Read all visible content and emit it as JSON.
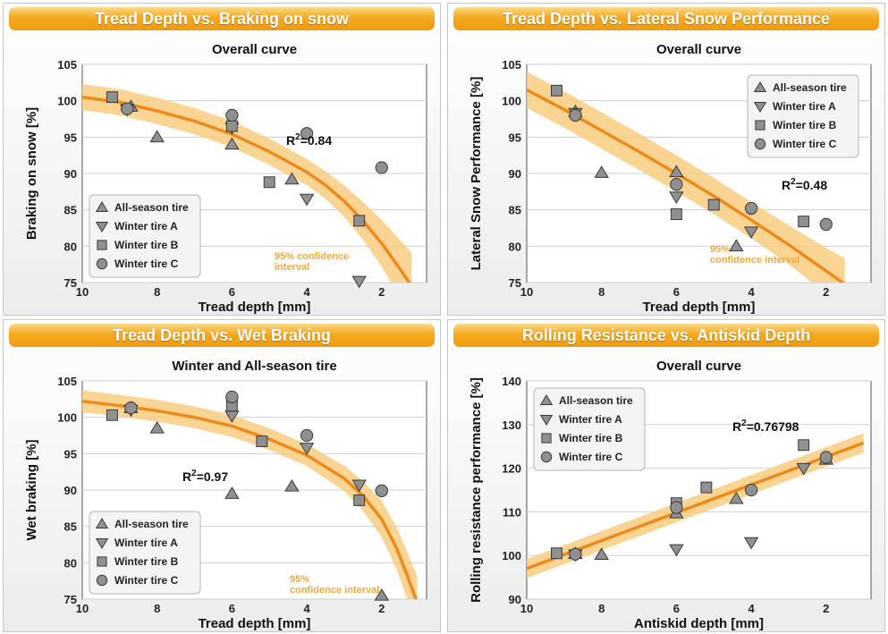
{
  "colors": {
    "banner": "#f4a91f",
    "band": "#f9cc80",
    "curve": "#ee8a1c",
    "ci_text": "#f2a93b",
    "marker_fill": "#909090",
    "marker_stroke": "#3a3a3a"
  },
  "legend_items": [
    {
      "label": "All-season tire",
      "marker": "triangle-up"
    },
    {
      "label": "Winter tire A",
      "marker": "triangle-down"
    },
    {
      "label": "Winter tire B",
      "marker": "square"
    },
    {
      "label": "Winter tire C",
      "marker": "circle"
    }
  ],
  "panels": [
    {
      "banner": "Tread Depth vs. Braking on snow",
      "r2_label": "R",
      "r2_sup": "2",
      "r2_value": "=0.84",
      "ci_line1": "95%  confidence",
      "ci_line2": "interval"
    },
    {
      "banner": "Tread Depth vs. Lateral Snow Performance",
      "r2_label": "R",
      "r2_sup": "2",
      "r2_value": "=0.48",
      "ci_line1": "95%",
      "ci_line2": "confidence interval"
    },
    {
      "banner": "Tread Depth vs. Wet Braking",
      "r2_label": "R",
      "r2_sup": "2",
      "r2_value": "=0.97",
      "ci_line1": "95%",
      "ci_line2": "confidence interval"
    },
    {
      "banner": "Rolling Resistance vs. Antiskid Depth",
      "r2_label": "R",
      "r2_sup": "2",
      "r2_value": "=0.76798",
      "ci_line1": "",
      "ci_line2": ""
    }
  ],
  "chart_data": [
    {
      "type": "scatter",
      "title": "Overall curve",
      "xlabel": "Tread depth [mm]",
      "ylabel": "Braking on snow [%]",
      "xlim": [
        10,
        0.8
      ],
      "x_reversed": true,
      "ylim": [
        75,
        105
      ],
      "xticks": [
        10,
        8,
        6,
        4,
        2
      ],
      "yticks": [
        75,
        80,
        85,
        90,
        95,
        100,
        105
      ],
      "legend_position": "bottom-left",
      "grid": true,
      "series": [
        {
          "name": "All-season tire",
          "marker": "triangle-up",
          "points": [
            [
              8.7,
              99.2
            ],
            [
              8,
              95
            ],
            [
              6,
              94
            ],
            [
              4.4,
              89.2
            ]
          ]
        },
        {
          "name": "Winter tire A",
          "marker": "triangle-down",
          "points": [
            [
              8.8,
              98.8
            ],
            [
              6,
              96.3
            ],
            [
              4,
              86.5
            ],
            [
              2.6,
              75.2
            ]
          ]
        },
        {
          "name": "Winter tire B",
          "marker": "square",
          "points": [
            [
              9.2,
              100.5
            ],
            [
              6,
              96.5
            ],
            [
              5,
              88.8
            ],
            [
              2.6,
              83.5
            ]
          ]
        },
        {
          "name": "Winter tire C",
          "marker": "circle",
          "points": [
            [
              8.8,
              98.9
            ],
            [
              6,
              98
            ],
            [
              4,
              95.5
            ],
            [
              2,
              90.8
            ]
          ]
        }
      ],
      "fit": {
        "points": [
          [
            10,
            100.5
          ],
          [
            9,
            99.8
          ],
          [
            8,
            98.6
          ],
          [
            7,
            97.2
          ],
          [
            6,
            95.4
          ],
          [
            5,
            93
          ],
          [
            4,
            90.2
          ],
          [
            3.5,
            88.4
          ],
          [
            3,
            86.2
          ],
          [
            2.5,
            83.5
          ],
          [
            2,
            80.4
          ],
          [
            1.5,
            76.8
          ],
          [
            1.2,
            74.5
          ]
        ],
        "band": 1.8,
        "band_growth": 3.2
      }
    },
    {
      "type": "scatter",
      "title": "Overall curve",
      "xlabel": "Tread depth [mm]",
      "ylabel": "Lateral Snow Performance [%]",
      "xlim": [
        10,
        0.8
      ],
      "x_reversed": true,
      "ylim": [
        75,
        105
      ],
      "xticks": [
        10,
        8,
        6,
        4,
        2
      ],
      "yticks": [
        75,
        80,
        85,
        90,
        95,
        100,
        105
      ],
      "legend_position": "top-right",
      "grid": true,
      "series": [
        {
          "name": "All-season tire",
          "marker": "triangle-up",
          "points": [
            [
              8.7,
              98.5
            ],
            [
              8,
              90.1
            ],
            [
              6,
              90.2
            ],
            [
              4.4,
              80
            ]
          ]
        },
        {
          "name": "Winter tire A",
          "marker": "triangle-down",
          "points": [
            [
              8.7,
              98.3
            ],
            [
              6,
              86.8
            ],
            [
              4,
              82
            ]
          ]
        },
        {
          "name": "Winter tire B",
          "marker": "square",
          "points": [
            [
              9.2,
              101.4
            ],
            [
              6,
              84.4
            ],
            [
              5,
              85.7
            ],
            [
              2.6,
              83.4
            ]
          ]
        },
        {
          "name": "Winter tire C",
          "marker": "circle",
          "points": [
            [
              8.7,
              98
            ],
            [
              6,
              88.5
            ],
            [
              4,
              85.2
            ],
            [
              2,
              83
            ]
          ]
        }
      ],
      "fit": {
        "points": [
          [
            10,
            101.5
          ],
          [
            9,
            98.8
          ],
          [
            8,
            95.9
          ],
          [
            7,
            93
          ],
          [
            6,
            90
          ],
          [
            5,
            86.9
          ],
          [
            4,
            83.6
          ],
          [
            3,
            80.2
          ],
          [
            2,
            76.6
          ],
          [
            1.5,
            74.8
          ]
        ],
        "band": 2.5,
        "band_growth": 1.5
      }
    },
    {
      "type": "scatter",
      "title": "Winter and All-season tire",
      "xlabel": "Tread depth [mm]",
      "ylabel": "Wet braking  [%]",
      "xlim": [
        10,
        0.8
      ],
      "x_reversed": true,
      "ylim": [
        75,
        105
      ],
      "xticks": [
        10,
        8,
        6,
        4,
        2
      ],
      "yticks": [
        75,
        80,
        85,
        90,
        95,
        100,
        105
      ],
      "legend_position": "bottom-left",
      "grid": true,
      "series": [
        {
          "name": "All-season tire",
          "marker": "triangle-up",
          "points": [
            [
              8.7,
              101.3
            ],
            [
              8,
              98.5
            ],
            [
              6,
              89.5
            ],
            [
              4.4,
              90.5
            ],
            [
              2,
              75.5
            ]
          ]
        },
        {
          "name": "Winter tire A",
          "marker": "triangle-down",
          "points": [
            [
              8.7,
              101
            ],
            [
              6,
              100.2
            ],
            [
              4,
              95.8
            ],
            [
              2.6,
              90.7
            ]
          ]
        },
        {
          "name": "Winter tire B",
          "marker": "square",
          "points": [
            [
              9.2,
              100.3
            ],
            [
              6,
              101.6
            ],
            [
              5.2,
              96.7
            ],
            [
              2.6,
              88.6
            ]
          ]
        },
        {
          "name": "Winter tire C",
          "marker": "circle",
          "points": [
            [
              8.7,
              101.3
            ],
            [
              6,
              102.8
            ],
            [
              4,
              97.5
            ],
            [
              2,
              89.9
            ]
          ]
        }
      ],
      "fit": {
        "points": [
          [
            10,
            102.2
          ],
          [
            9,
            101.6
          ],
          [
            8,
            100.9
          ],
          [
            7,
            100
          ],
          [
            6,
            98.8
          ],
          [
            5,
            97
          ],
          [
            4,
            94.8
          ],
          [
            3,
            91.6
          ],
          [
            2.5,
            89.2
          ],
          [
            2,
            86
          ],
          [
            1.6,
            82
          ],
          [
            1.3,
            78
          ],
          [
            1.05,
            74.5
          ]
        ],
        "band": 1.5,
        "band_growth": 2.2
      }
    },
    {
      "type": "scatter",
      "title": "Overall curve",
      "xlabel": "Antiskid depth [mm]",
      "ylabel": "Rolling resistance performance [%]",
      "xlim": [
        10,
        0.8
      ],
      "x_reversed": true,
      "ylim": [
        90,
        140
      ],
      "xticks": [
        10,
        8,
        6,
        4,
        2
      ],
      "yticks": [
        90,
        100,
        110,
        120,
        130,
        140
      ],
      "legend_position": "top-left",
      "grid": true,
      "series": [
        {
          "name": "All-season tire",
          "marker": "triangle-up",
          "points": [
            [
              8.7,
              100.4
            ],
            [
              8,
              100.2
            ],
            [
              6,
              109.7
            ],
            [
              4.4,
              113
            ],
            [
              2,
              122
            ]
          ]
        },
        {
          "name": "Winter tire A",
          "marker": "triangle-down",
          "points": [
            [
              8.7,
              100.2
            ],
            [
              6,
              101.4
            ],
            [
              4,
              103
            ],
            [
              2.6,
              120
            ]
          ]
        },
        {
          "name": "Winter tire B",
          "marker": "square",
          "points": [
            [
              9.2,
              100.5
            ],
            [
              6,
              112
            ],
            [
              5.2,
              115.6
            ],
            [
              2.6,
              125.3
            ]
          ]
        },
        {
          "name": "Winter tire C",
          "marker": "circle",
          "points": [
            [
              8.7,
              100.3
            ],
            [
              6,
              111
            ],
            [
              4,
              115
            ],
            [
              2,
              122.5
            ]
          ]
        }
      ],
      "fit": {
        "points": [
          [
            10,
            97
          ],
          [
            1,
            125.8
          ]
        ],
        "band": 2.2,
        "band_growth": 0
      }
    }
  ]
}
